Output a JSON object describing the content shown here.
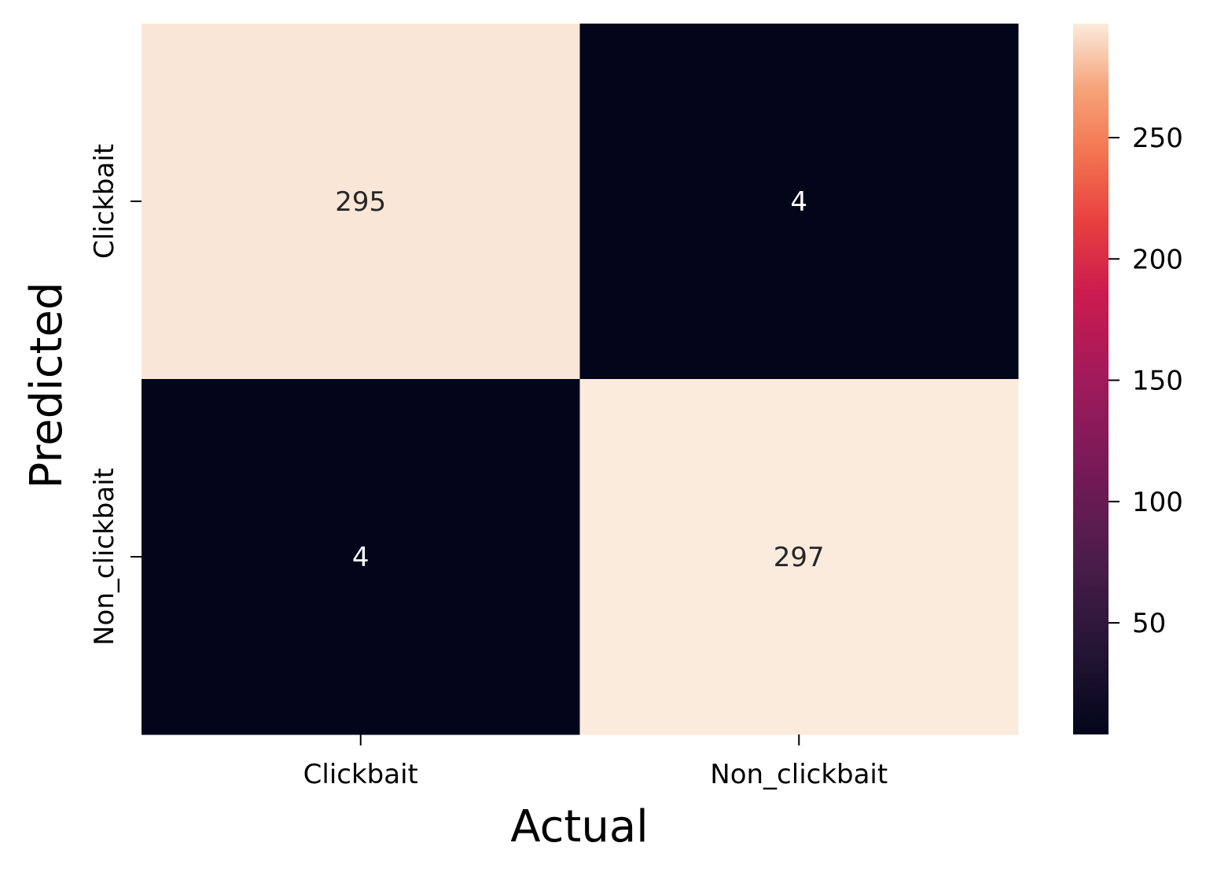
{
  "chart_data": {
    "type": "heatmap",
    "title": "",
    "xlabel": "Actual",
    "ylabel": "Predicted",
    "x_categories": [
      "Clickbait",
      "Non_clickbait"
    ],
    "y_categories": [
      "Clickbait",
      "Non_clickbait"
    ],
    "values": [
      [
        295,
        4
      ],
      [
        4,
        297
      ]
    ],
    "annotations": true,
    "colormap": "rocket",
    "colorbar": {
      "vmin": 4,
      "vmax": 297,
      "ticks": [
        50,
        100,
        150,
        200,
        250
      ]
    },
    "grid": false
  }
}
